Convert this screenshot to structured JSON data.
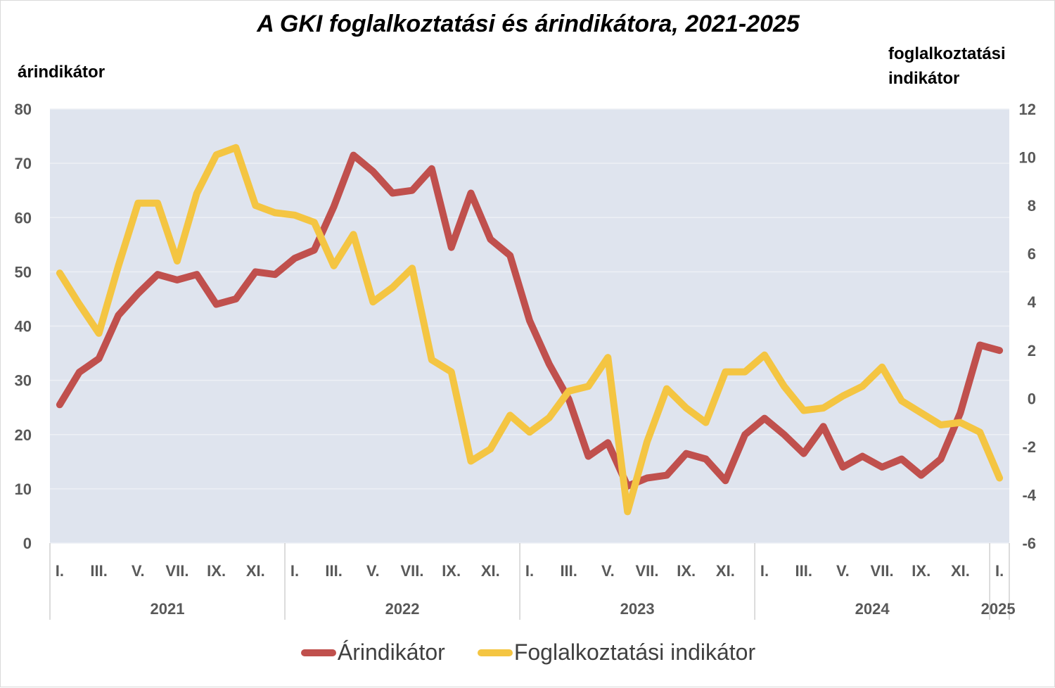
{
  "chart_data": {
    "type": "line",
    "title": "A GKI foglalkoztatási és árindikátora, 2021-2025",
    "ylabel_left": "árindikátor",
    "ylabel_right_line1": "foglalkoztatási",
    "ylabel_right_line2": "indikátor",
    "ylim_left": [
      0,
      80
    ],
    "yticks_left": [
      "0",
      "10",
      "20",
      "30",
      "40",
      "50",
      "60",
      "70",
      "80"
    ],
    "ylim_right": [
      -6,
      12
    ],
    "yticks_right": [
      "-6",
      "-4",
      "-2",
      "0",
      "2",
      "4",
      "6",
      "8",
      "10",
      "12"
    ],
    "month_labels": [
      "I.",
      "III.",
      "V.",
      "VII.",
      "IX.",
      "XI.",
      "I.",
      "III.",
      "V.",
      "VII.",
      "IX.",
      "XI.",
      "I.",
      "III.",
      "V.",
      "VII.",
      "IX.",
      "XI.",
      "I.",
      "III.",
      "V.",
      "VII.",
      "IX.",
      "XI.",
      "I."
    ],
    "years": [
      "2021",
      "2022",
      "2023",
      "2024",
      "2025"
    ],
    "series": [
      {
        "name": "Árindikátor",
        "axis": "left",
        "color": "#c0504d",
        "values": [
          25.5,
          31.5,
          34,
          42,
          46,
          49.5,
          48.5,
          49.5,
          44,
          45,
          50,
          49.5,
          52.5,
          54,
          62,
          71.5,
          68.5,
          64.5,
          65,
          69,
          54.5,
          64.5,
          56,
          53,
          41,
          33,
          26.5,
          16,
          18.5,
          10.5,
          12,
          12.5,
          16.5,
          15.5,
          11.5,
          20,
          23,
          20,
          16.5,
          21.5,
          14,
          16,
          14,
          15.5,
          12.5,
          15.5,
          24,
          36.5,
          35.5
        ]
      },
      {
        "name": "Foglalkoztatási indikátor",
        "axis": "right",
        "color": "#f4c542",
        "values": [
          5.2,
          3.9,
          2.7,
          5.5,
          8.1,
          8.1,
          5.7,
          8.5,
          10.1,
          10.4,
          8,
          7.7,
          7.6,
          7.3,
          5.5,
          6.8,
          4,
          4.6,
          5.4,
          1.6,
          1.1,
          -2.6,
          -2.1,
          -0.7,
          -1.4,
          -0.8,
          0.3,
          0.5,
          1.7,
          -4.7,
          -1.8,
          0.4,
          -0.4,
          -1,
          1.1,
          1.1,
          1.8,
          0.5,
          -0.5,
          -0.4,
          0.1,
          0.5,
          1.3,
          -0.1,
          -0.6,
          -1.1,
          -1,
          -1.4,
          -3.3
        ]
      }
    ],
    "legend": [
      "Árindikátor",
      "Foglalkoztatási indikátor"
    ],
    "legend_position": "bottom",
    "grid": true
  }
}
